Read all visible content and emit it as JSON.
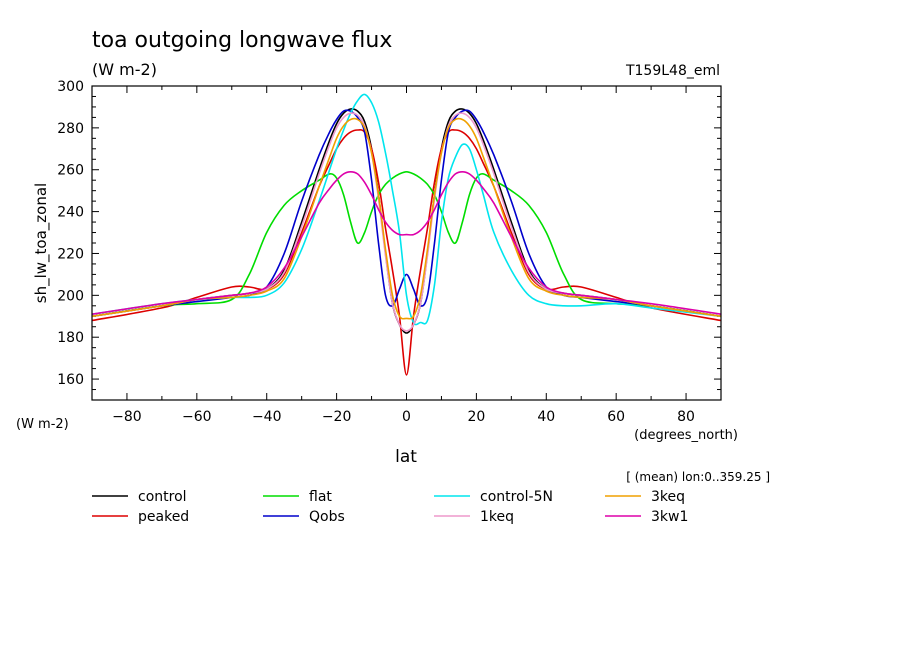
{
  "chart_data": {
    "type": "line",
    "title": "toa outgoing longwave flux",
    "subtitle": "(W m-2)",
    "run_label": "T159L48_eml",
    "ylabel": "sh_lw_toa_zonal",
    "yunit": "(W m-2)",
    "xlabel": "lat",
    "xunit": "(degrees_north)",
    "note": "[ (mean) lon:0..359.25 ]",
    "xlim": [
      -90,
      90
    ],
    "ylim": [
      150,
      300
    ],
    "xticks": [
      -80,
      -60,
      -40,
      -20,
      0,
      20,
      40,
      60,
      80
    ],
    "yticks": [
      160,
      180,
      200,
      220,
      240,
      260,
      280,
      300
    ],
    "grid": false,
    "legend_position": "bottom",
    "x": [
      -90,
      -70,
      -60,
      -50,
      -45,
      -40,
      -35,
      -30,
      -25,
      -22,
      -20,
      -18,
      -16,
      -14,
      -12,
      -10,
      -8,
      -6,
      -4,
      -2,
      0,
      2,
      4,
      6,
      8,
      10,
      12,
      14,
      16,
      18,
      20,
      22,
      25,
      30,
      35,
      40,
      45,
      50,
      60,
      70,
      90
    ],
    "series": [
      {
        "name": "control",
        "color": "#000000",
        "values": [
          190,
          195,
          198,
          200,
          201,
          203,
          212,
          235,
          260,
          274,
          282,
          287,
          289,
          288,
          283,
          270,
          248,
          220,
          196,
          186,
          182,
          186,
          196,
          220,
          248,
          270,
          283,
          288,
          289,
          287,
          282,
          274,
          260,
          235,
          212,
          203,
          201,
          200,
          198,
          195,
          190
        ]
      },
      {
        "name": "peaked",
        "color": "#dd0000",
        "values": [
          188,
          194,
          199,
          204,
          204,
          203,
          210,
          230,
          252,
          263,
          270,
          275,
          278,
          279,
          278,
          270,
          254,
          232,
          212,
          190,
          162,
          190,
          212,
          232,
          254,
          270,
          278,
          279,
          278,
          275,
          270,
          263,
          252,
          230,
          210,
          203,
          204,
          204,
          199,
          194,
          188
        ]
      },
      {
        "name": "flat",
        "color": "#00dd00",
        "values": [
          190,
          195,
          196,
          198,
          210,
          230,
          243,
          250,
          255,
          258,
          256,
          248,
          235,
          225,
          230,
          240,
          248,
          253,
          256,
          258,
          259,
          258,
          256,
          253,
          248,
          240,
          230,
          225,
          235,
          248,
          256,
          258,
          255,
          250,
          243,
          230,
          210,
          198,
          196,
          195,
          190
        ]
      },
      {
        "name": "Qobs",
        "color": "#0000cc",
        "values": [
          190,
          195,
          197,
          199,
          200,
          204,
          220,
          245,
          267,
          278,
          284,
          288,
          288,
          285,
          278,
          255,
          225,
          200,
          195,
          203,
          210,
          203,
          195,
          200,
          225,
          255,
          278,
          285,
          288,
          288,
          284,
          278,
          267,
          245,
          220,
          204,
          200,
          199,
          197,
          195,
          190
        ]
      },
      {
        "name": "control-5N",
        "color": "#00e5ee",
        "values": [
          191,
          196,
          198,
          199,
          199,
          200,
          206,
          222,
          245,
          260,
          270,
          279,
          287,
          293,
          296,
          292,
          283,
          268,
          250,
          230,
          200,
          187,
          187,
          188,
          205,
          235,
          256,
          266,
          272,
          270,
          260,
          248,
          230,
          212,
          200,
          196,
          195,
          195,
          196,
          194,
          190
        ]
      },
      {
        "name": "1keq",
        "color": "#ee99cc",
        "values": [
          190,
          195,
          198,
          200,
          201,
          203,
          211,
          233,
          258,
          272,
          280,
          285,
          287,
          286,
          281,
          268,
          246,
          219,
          196,
          186,
          183,
          186,
          196,
          219,
          246,
          268,
          281,
          286,
          287,
          285,
          280,
          272,
          258,
          233,
          211,
          203,
          201,
          200,
          198,
          195,
          190
        ]
      },
      {
        "name": "3keq",
        "color": "#f0a000",
        "values": [
          190,
          195,
          198,
          199,
          200,
          202,
          208,
          228,
          252,
          266,
          275,
          281,
          284,
          284,
          280,
          268,
          248,
          222,
          200,
          190,
          189,
          190,
          200,
          222,
          248,
          268,
          280,
          284,
          284,
          281,
          275,
          266,
          252,
          228,
          208,
          202,
          200,
          199,
          198,
          195,
          190
        ]
      },
      {
        "name": "3kw1",
        "color": "#dd00aa",
        "values": [
          191,
          196,
          198,
          200,
          201,
          204,
          213,
          228,
          244,
          251,
          255,
          258,
          259,
          258,
          254,
          248,
          241,
          235,
          231,
          229,
          229,
          229,
          231,
          235,
          241,
          248,
          254,
          258,
          259,
          258,
          255,
          251,
          244,
          228,
          213,
          204,
          201,
          200,
          198,
          196,
          191
        ]
      }
    ]
  }
}
